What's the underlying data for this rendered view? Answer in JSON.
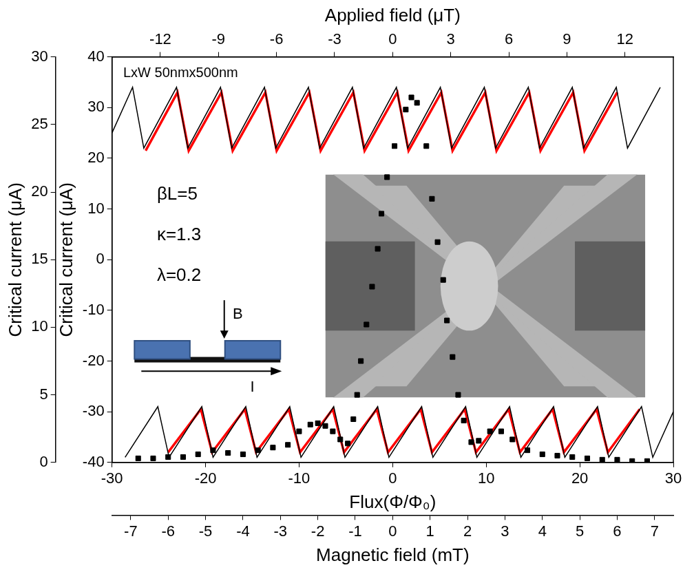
{
  "chart_data": {
    "type": "line",
    "grid": false,
    "xlabel": "Flux(Φ/Φ₀)",
    "xlim": [
      -30,
      30
    ],
    "xticks": [
      -30,
      -20,
      -10,
      0,
      10,
      20,
      30
    ],
    "x2label": "Magnetic field (mT)",
    "x2lim": [
      -7.5,
      7.5
    ],
    "x2ticks": [
      -7,
      -6,
      -5,
      -4,
      -3,
      -2,
      -1,
      0,
      1,
      2,
      3,
      4,
      5,
      6,
      7
    ],
    "x3label": "Applied field (μT)",
    "x3lim": [
      -14.5,
      14.5
    ],
    "x3ticks": [
      -12,
      -9,
      -6,
      -3,
      0,
      3,
      6,
      9,
      12
    ],
    "ylabel": "Critical current (μA)",
    "ylim": [
      -40,
      40
    ],
    "yticks": [
      -40,
      -30,
      -20,
      -10,
      0,
      10,
      20,
      30,
      40
    ],
    "y2label": "Critical current (μA)",
    "y2lim": [
      0,
      30
    ],
    "y2ticks": [
      0,
      5,
      10,
      15,
      20,
      25,
      30
    ],
    "annotations": [
      "LxW 50nmx500nm",
      "βL=5",
      "κ=1.3",
      "λ=0.2",
      "B",
      "I"
    ],
    "series": [
      {
        "color": "#000000",
        "marker": "none",
        "line_style": "solid",
        "x": [
          -30,
          -27.8,
          -26.6,
          -23.1,
          -21.9,
          -18.4,
          -17.2,
          -13.7,
          -12.5,
          -9,
          -7.8,
          -4.3,
          -3.1,
          0.4,
          1.6,
          5.1,
          6.3,
          9.8,
          11,
          14.5,
          15.7,
          19.2,
          20.4,
          23.9,
          25.1,
          28.6
        ],
        "values": [
          25,
          34,
          22,
          34,
          22,
          34,
          22,
          34,
          22,
          34,
          22,
          34,
          22,
          34,
          22,
          34,
          22,
          34,
          22,
          34,
          22,
          34,
          22,
          34,
          22,
          34
        ]
      },
      {
        "color": "#000000",
        "marker": "none",
        "line_style": "solid",
        "x": [
          -28.6,
          -25.1,
          -23.9,
          -20.4,
          -19.2,
          -15.7,
          -14.5,
          -11,
          -9.8,
          -6.3,
          -5.1,
          -1.6,
          -0.4,
          3.1,
          4.3,
          7.8,
          9,
          12.5,
          13.7,
          17.2,
          18.4,
          21.9,
          23.1,
          26.6,
          27.8,
          30
        ],
        "values": [
          -39,
          -29,
          -39,
          -29,
          -39,
          -29,
          -39,
          -29,
          -39,
          -29,
          -39,
          -29,
          -39,
          -29,
          -39,
          -29,
          -39,
          -29,
          -39,
          -29,
          -39,
          -29,
          -39,
          -29,
          -39,
          -30
        ]
      },
      {
        "color": "#ff0000",
        "marker": "none",
        "line_style": "solid",
        "x": [
          -26.4,
          -23,
          -21.8,
          -18.3,
          -17.1,
          -13.6,
          -12.4,
          -8.9,
          -7.7,
          -4.2,
          -3,
          0.5,
          1.7,
          5.2,
          6.4,
          9.9,
          11.1,
          14.6,
          15.8,
          19.3,
          20.5,
          24
        ],
        "values": [
          21.5,
          33,
          21.5,
          33,
          21.5,
          33,
          21.5,
          33,
          21.5,
          33,
          21.5,
          33,
          21.5,
          33,
          21.5,
          33,
          21.5,
          33,
          21.5,
          33,
          21.5,
          33
        ]
      },
      {
        "color": "#ff0000",
        "marker": "none",
        "line_style": "solid",
        "x": [
          -24,
          -20.5,
          -19.3,
          -15.8,
          -14.6,
          -11.1,
          -9.9,
          -6.4,
          -5.2,
          -1.7,
          -0.5,
          3,
          4.2,
          7.7,
          8.9,
          12.4,
          13.6,
          17.1,
          18.3,
          21.8,
          23,
          26.4
        ],
        "values": [
          -38,
          -29.5,
          -38,
          -29.5,
          -38,
          -29.5,
          -38,
          -29.5,
          -38,
          -29.5,
          -38,
          -29.5,
          -38,
          -29.5,
          -38,
          -29.5,
          -38,
          -29.5,
          -38,
          -29.5,
          -38,
          -29.5
        ]
      },
      {
        "type": "scatter",
        "color": "#000000",
        "marker": "square",
        "axis": "y2",
        "x": [
          -6.8,
          -6.4,
          -6,
          -5.6,
          -5.2,
          -4.8,
          -4.4,
          -4,
          -3.6,
          -3.2,
          -2.8,
          -2.5,
          -2.2,
          -2,
          -1.8,
          -1.6,
          -1.4,
          -1.2,
          -1.05,
          -0.95,
          -0.85,
          -0.7,
          -0.55,
          -0.4,
          -0.3,
          -0.15,
          0.05,
          0.35,
          0.5,
          0.65,
          0.9,
          1.05,
          1.2,
          1.35,
          1.45,
          1.6,
          1.75,
          1.9,
          2.1,
          2.3,
          2.6,
          2.9,
          3.2,
          3.6,
          4,
          4.4,
          4.8,
          5.2,
          5.6,
          6,
          6.4,
          6.8
        ],
        "values": [
          0.3,
          0.3,
          0.4,
          0.4,
          0.6,
          0.9,
          0.7,
          0.6,
          0.9,
          1.1,
          1.3,
          2.3,
          2.8,
          2.9,
          2.7,
          2.3,
          1.7,
          1.4,
          3.2,
          5,
          7.5,
          10.2,
          13,
          15.8,
          18.4,
          21.1,
          23.4,
          26.1,
          27,
          26.6,
          23.4,
          19.5,
          16.3,
          13.5,
          10.5,
          7.8,
          5,
          3.1,
          1.5,
          1.6,
          2.3,
          2.3,
          1.7,
          0.9,
          0.6,
          0.5,
          0.4,
          0.3,
          0.2,
          0.2,
          0.1,
          0.1
        ]
      }
    ]
  }
}
